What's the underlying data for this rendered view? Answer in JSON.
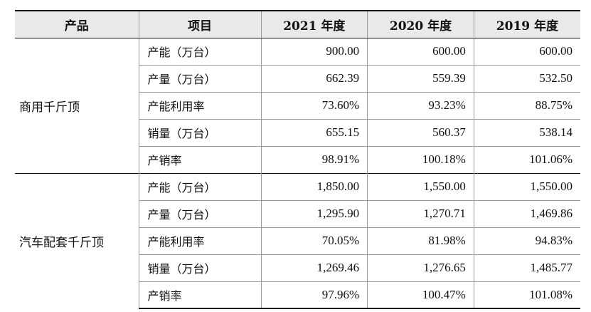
{
  "table": {
    "headers": [
      "产品",
      "项目",
      "2021 年度",
      "2020 年度",
      "2019 年度"
    ],
    "groups": [
      {
        "product": "商用千斤顶",
        "rows": [
          {
            "item": "产能（万台）",
            "values": [
              "900.00",
              "600.00",
              "600.00"
            ]
          },
          {
            "item": "产量（万台）",
            "values": [
              "662.39",
              "559.39",
              "532.50"
            ]
          },
          {
            "item": "产能利用率",
            "values": [
              "73.60%",
              "93.23%",
              "88.75%"
            ]
          },
          {
            "item": "销量（万台）",
            "values": [
              "655.15",
              "560.37",
              "538.14"
            ]
          },
          {
            "item": "产销率",
            "values": [
              "98.91%",
              "100.18%",
              "101.06%"
            ]
          }
        ]
      },
      {
        "product": "汽车配套千斤顶",
        "rows": [
          {
            "item": "产能（万台）",
            "values": [
              "1,850.00",
              "1,550.00",
              "1,550.00"
            ]
          },
          {
            "item": "产量（万台）",
            "values": [
              "1,295.90",
              "1,270.71",
              "1,469.86"
            ]
          },
          {
            "item": "产能利用率",
            "values": [
              "70.05%",
              "81.98%",
              "94.83%"
            ]
          },
          {
            "item": "销量（万台）",
            "values": [
              "1,269.46",
              "1,276.65",
              "1,485.77"
            ]
          },
          {
            "item": "产销率",
            "values": [
              "97.96%",
              "100.47%",
              "101.08%"
            ]
          }
        ]
      }
    ]
  }
}
